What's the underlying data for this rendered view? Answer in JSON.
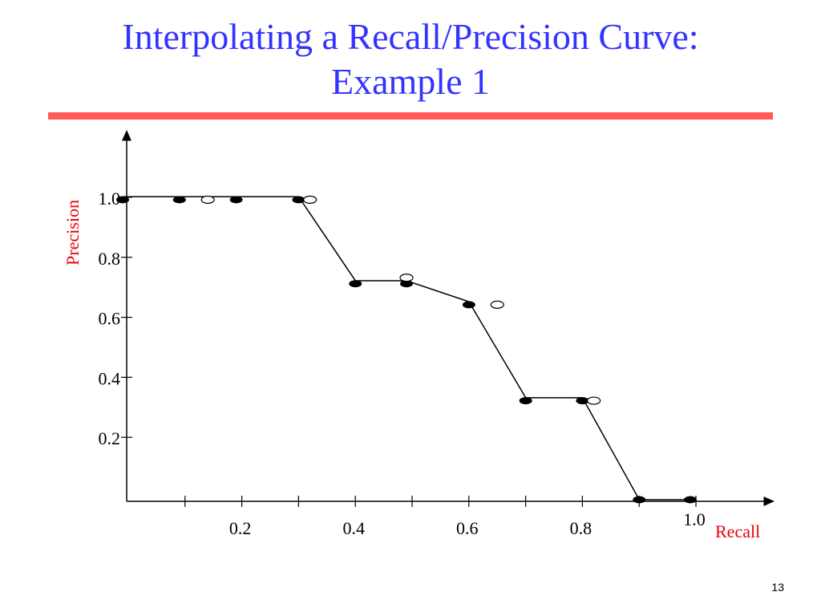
{
  "slide": {
    "title_line1": "Interpolating a Recall/Precision Curve:",
    "title_line2": "Example 1",
    "page_number": "13"
  },
  "colors": {
    "title": "#3333ff",
    "rule": "#ff5a55",
    "axis_title": "#e8000b"
  },
  "chart_data": {
    "type": "line",
    "xlabel": "Recall",
    "ylabel": "Precision",
    "xlim": [
      0,
      1.0
    ],
    "ylim": [
      0,
      1.0
    ],
    "grid": false,
    "x_ticks": [
      0.1,
      0.2,
      0.3,
      0.4,
      0.5,
      0.6,
      0.7,
      0.8,
      0.9,
      1.0
    ],
    "x_tick_labels": [
      {
        "value": 0.2,
        "label": "0.2"
      },
      {
        "value": 0.4,
        "label": "0.4"
      },
      {
        "value": 0.6,
        "label": "0.6"
      },
      {
        "value": 0.8,
        "label": "0.8"
      },
      {
        "value": 1.0,
        "label": "1.0"
      }
    ],
    "y_ticks": [
      0.2,
      0.4,
      0.6,
      0.8,
      1.0
    ],
    "y_tick_labels": [
      {
        "value": 0.2,
        "label": "0.2"
      },
      {
        "value": 0.4,
        "label": "0.4"
      },
      {
        "value": 0.6,
        "label": "0.6"
      },
      {
        "value": 0.8,
        "label": "0.8"
      },
      {
        "value": 1.0,
        "label": "1.0"
      }
    ],
    "series": [
      {
        "style": "filled-points",
        "x": [
          0.0,
          0.1,
          0.2,
          0.31,
          0.41,
          0.5,
          0.61,
          0.71,
          0.81,
          0.91,
          1.0
        ],
        "y": [
          1.0,
          1.0,
          1.0,
          1.0,
          0.72,
          0.72,
          0.65,
          0.33,
          0.33,
          0.0,
          0.0
        ]
      },
      {
        "style": "open-points",
        "x": [
          0.15,
          0.33,
          0.5,
          0.66,
          0.83
        ],
        "y": [
          1.0,
          1.0,
          0.74,
          0.65,
          0.33
        ]
      },
      {
        "style": "interpolated-line",
        "x": [
          0.0,
          0.31,
          0.41,
          0.5,
          0.61,
          0.71,
          0.81,
          0.91,
          1.0
        ],
        "y": [
          1.01,
          1.01,
          0.73,
          0.73,
          0.66,
          0.34,
          0.34,
          0.0,
          0.0
        ]
      }
    ]
  }
}
